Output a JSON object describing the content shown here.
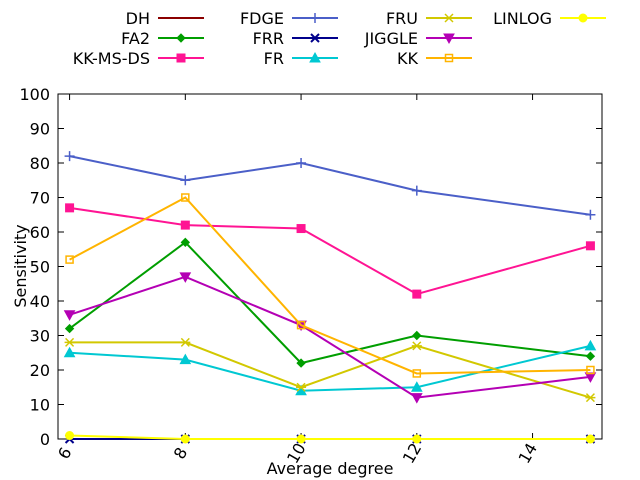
{
  "chart_data": {
    "type": "line",
    "xlabel": "Average degree",
    "ylabel": "Sensitivity",
    "xlim": [
      5.8,
      15.2
    ],
    "ylim": [
      0,
      100
    ],
    "xticks": [
      6,
      8,
      10,
      12,
      14
    ],
    "yticks": [
      0,
      10,
      20,
      30,
      40,
      50,
      60,
      70,
      80,
      90,
      100
    ],
    "grid": false,
    "legend_position": "top",
    "x": [
      6,
      8,
      10,
      12,
      15
    ],
    "series": [
      {
        "name": "DH",
        "color": "#8b0000",
        "marker": "none",
        "values": [
          0,
          0,
          0,
          0,
          0
        ]
      },
      {
        "name": "FA2",
        "color": "#009e00",
        "marker": "diamond",
        "values": [
          32,
          57,
          22,
          30,
          24
        ]
      },
      {
        "name": "KK-MS-DS",
        "color": "#ff1493",
        "marker": "square",
        "values": [
          67,
          62,
          61,
          42,
          56
        ]
      },
      {
        "name": "FDGE",
        "color": "#4b5fc8",
        "marker": "plus",
        "values": [
          82,
          75,
          80,
          72,
          65
        ]
      },
      {
        "name": "FRR",
        "color": "#00008b",
        "marker": "cross",
        "values": [
          0,
          0,
          0,
          0,
          0
        ]
      },
      {
        "name": "FR",
        "color": "#00c8d2",
        "marker": "triangle-up",
        "values": [
          25,
          23,
          14,
          15,
          27
        ]
      },
      {
        "name": "FRU",
        "color": "#d2c800",
        "marker": "star",
        "values": [
          28,
          28,
          15,
          27,
          12
        ]
      },
      {
        "name": "JIGGLE",
        "color": "#b400b4",
        "marker": "triangle-down",
        "values": [
          36,
          47,
          33,
          12,
          18
        ]
      },
      {
        "name": "KK",
        "color": "#ffb400",
        "marker": "open-square",
        "values": [
          52,
          70,
          33,
          19,
          20
        ]
      },
      {
        "name": "LINLOG",
        "color": "#ffff00",
        "marker": "circle",
        "values": [
          1,
          0,
          0,
          0,
          0
        ]
      }
    ]
  }
}
